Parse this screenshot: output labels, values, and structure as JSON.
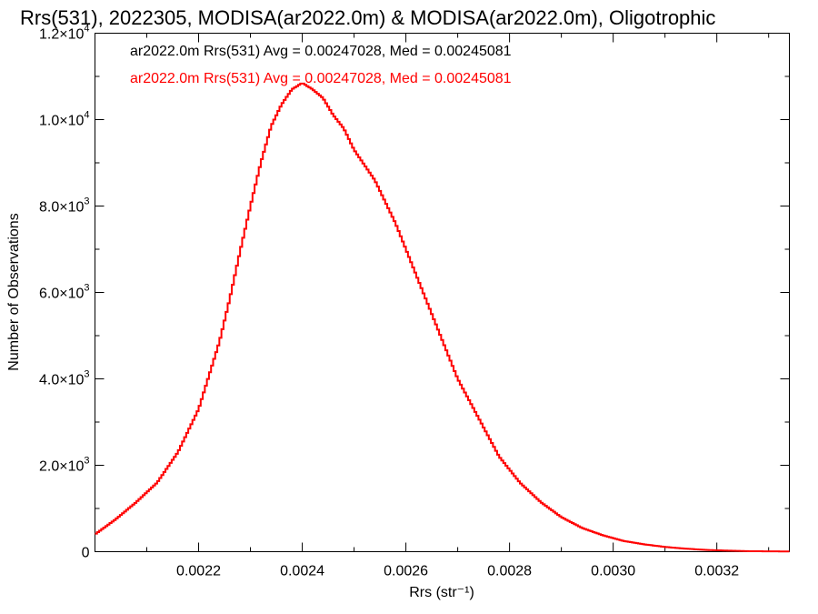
{
  "chart_data": {
    "type": "line",
    "title": "Rrs(531), 2022305, MODISA(ar2022.0m) & MODISA(ar2022.0m), Oligotrophic",
    "xlabel": "Rrs (str⁻¹)",
    "ylabel": "Number of Observations",
    "xlim": [
      0.002,
      0.00334
    ],
    "ylim": [
      0,
      12000
    ],
    "x_ticks": [
      {
        "value": 0.0022,
        "label": "0.0022"
      },
      {
        "value": 0.0024,
        "label": "0.0024"
      },
      {
        "value": 0.0026,
        "label": "0.0026"
      },
      {
        "value": 0.0028,
        "label": "0.0028"
      },
      {
        "value": 0.003,
        "label": "0.0030"
      },
      {
        "value": 0.0032,
        "label": "0.0032"
      }
    ],
    "y_ticks": [
      {
        "value": 0,
        "label": "0",
        "exp": ""
      },
      {
        "value": 2000,
        "label": "2.0×10",
        "exp": "3"
      },
      {
        "value": 4000,
        "label": "4.0×10",
        "exp": "3"
      },
      {
        "value": 6000,
        "label": "6.0×10",
        "exp": "3"
      },
      {
        "value": 8000,
        "label": "8.0×10",
        "exp": "3"
      },
      {
        "value": 10000,
        "label": "1.0×10",
        "exp": "4"
      },
      {
        "value": 12000,
        "label": "1.2×10",
        "exp": "4"
      }
    ],
    "grid": false,
    "legend": [
      {
        "text": "ar2022.0m Rrs(531) Avg = 0.00247028, Med = 0.00245081",
        "color": "#000000"
      },
      {
        "text": "ar2022.0m Rrs(531) Avg = 0.00247028, Med = 0.00245081",
        "color": "#ff0000"
      }
    ],
    "series": [
      {
        "color": "#ff0000",
        "step": true,
        "x": [
          0.002,
          0.00204,
          0.00208,
          0.00212,
          0.00216,
          0.0022,
          0.00224,
          0.00226,
          0.00228,
          0.0023,
          0.00232,
          0.00234,
          0.00236,
          0.00238,
          0.0024,
          0.00242,
          0.00244,
          0.00246,
          0.00248,
          0.0025,
          0.00254,
          0.00258,
          0.00262,
          0.00266,
          0.0027,
          0.00274,
          0.00278,
          0.00282,
          0.00286,
          0.0029,
          0.00294,
          0.00298,
          0.00302,
          0.00306,
          0.0031,
          0.00314,
          0.00318,
          0.00322,
          0.00326,
          0.0033,
          0.00334
        ],
        "y": [
          400,
          750,
          1150,
          1600,
          2300,
          3300,
          4850,
          5850,
          6950,
          8000,
          9000,
          9850,
          10350,
          10700,
          10850,
          10700,
          10500,
          10100,
          9800,
          9300,
          8600,
          7600,
          6400,
          5200,
          4000,
          3100,
          2200,
          1600,
          1150,
          800,
          550,
          380,
          250,
          170,
          110,
          70,
          40,
          25,
          12,
          8,
          5
        ]
      }
    ]
  }
}
